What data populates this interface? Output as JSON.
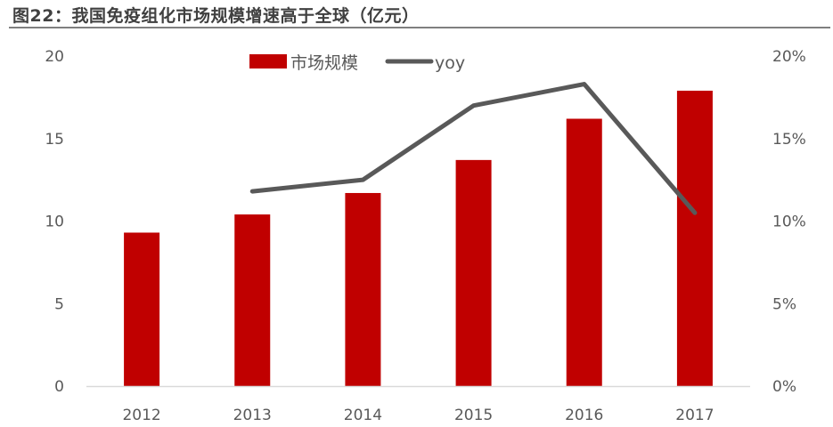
{
  "figure_title": "图22：我国免疫组化市场规模增速高于全球（亿元）",
  "colors": {
    "bar": "#C00000",
    "line": "#595959",
    "axis": "#d9d9d9",
    "text": "#595959",
    "title": "#404040"
  },
  "chart_data": {
    "type": "bar",
    "categories": [
      "2012",
      "2013",
      "2014",
      "2015",
      "2016",
      "2017"
    ],
    "series": [
      {
        "name": "市场规模",
        "type": "bar",
        "axis": "left",
        "values": [
          9.3,
          10.4,
          11.7,
          13.7,
          16.2,
          17.9
        ]
      },
      {
        "name": "yoy",
        "type": "line",
        "axis": "right",
        "values": [
          null,
          0.118,
          0.125,
          0.17,
          0.183,
          0.105
        ]
      }
    ],
    "y_left": {
      "min": 0,
      "max": 20,
      "ticks": [
        "0",
        "5",
        "10",
        "15",
        "20"
      ]
    },
    "y_right": {
      "min": 0,
      "max": 0.2,
      "ticks": [
        "0%",
        "5%",
        "10%",
        "15%",
        "20%"
      ]
    },
    "legend": "top-center",
    "grid": false
  }
}
